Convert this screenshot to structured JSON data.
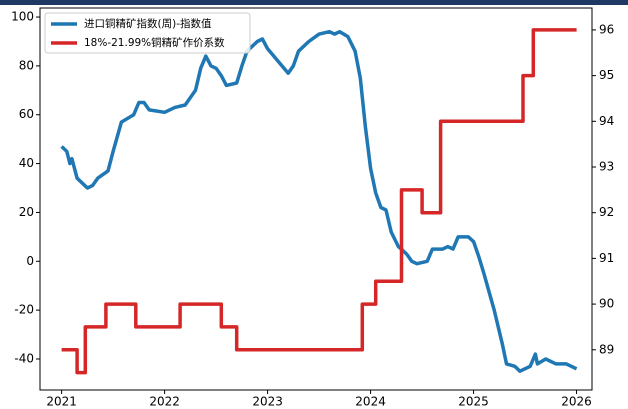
{
  "chart_data": {
    "type": "line",
    "xlim": [
      2020.79,
      2026.15
    ],
    "xticks": [
      2021,
      2022,
      2023,
      2024,
      2025,
      2026
    ],
    "ylim": [
      -52.7,
      103.7
    ],
    "yticks": [
      -40,
      -20,
      0,
      20,
      40,
      60,
      80,
      100
    ],
    "y2lim": [
      88.12,
      96.48
    ],
    "y2ticks": [
      89,
      90,
      91,
      92,
      93,
      94,
      95,
      96
    ],
    "legend": "upper left",
    "series": [
      {
        "name": "进口铜精矿指数(周)-指数值",
        "color": "#1f77b4",
        "x": [
          2021.0,
          2021.05,
          2021.08,
          2021.1,
          2021.15,
          2021.25,
          2021.3,
          2021.35,
          2021.45,
          2021.5,
          2021.58,
          2021.7,
          2021.75,
          2021.8,
          2021.85,
          2022.0,
          2022.1,
          2022.2,
          2022.3,
          2022.35,
          2022.4,
          2022.45,
          2022.5,
          2022.55,
          2022.6,
          2022.7,
          2022.75,
          2022.8,
          2022.9,
          2022.95,
          2023.0,
          2023.1,
          2023.2,
          2023.25,
          2023.3,
          2023.4,
          2023.5,
          2023.6,
          2023.65,
          2023.7,
          2023.78,
          2023.85,
          2023.9,
          2023.95,
          2024.0,
          2024.05,
          2024.1,
          2024.15,
          2024.2,
          2024.27,
          2024.35,
          2024.4,
          2024.45,
          2024.55,
          2024.6,
          2024.7,
          2024.75,
          2024.8,
          2024.85,
          2024.95,
          2025.0,
          2025.05,
          2025.1,
          2025.2,
          2025.28,
          2025.32,
          2025.4,
          2025.45,
          2025.55,
          2025.6,
          2025.62,
          2025.7,
          2025.8,
          2025.9,
          2026.0
        ],
        "values": [
          47,
          45,
          40,
          42,
          34,
          30,
          31,
          34,
          37,
          45,
          57,
          60,
          65,
          65,
          62,
          61,
          63,
          64,
          70,
          79,
          84,
          80,
          79,
          76,
          72,
          73,
          80,
          86,
          90,
          91,
          87,
          82,
          77,
          80,
          86,
          90,
          93,
          94,
          93,
          94,
          92,
          86,
          75,
          55,
          38,
          28,
          22,
          21,
          12,
          6,
          3,
          0,
          -1,
          0,
          5,
          5,
          6,
          5,
          10,
          10,
          8,
          2,
          -5,
          -20,
          -34,
          -42,
          -43,
          -45,
          -43,
          -38,
          -42,
          -40,
          -42,
          -42,
          -44
        ]
      },
      {
        "name": "18%-21.99%铜精矿作价系数",
        "color": "#d62728",
        "axis": "y2",
        "x": [
          2021.0,
          2021.15,
          2021.15,
          2021.23,
          2021.23,
          2021.43,
          2021.43,
          2021.72,
          2021.72,
          2022.15,
          2022.15,
          2022.55,
          2022.55,
          2022.7,
          2022.7,
          2023.92,
          2023.92,
          2024.05,
          2024.05,
          2024.3,
          2024.3,
          2024.5,
          2024.5,
          2024.68,
          2024.68,
          2025.48,
          2025.48,
          2025.58,
          2025.58,
          2026.0
        ],
        "values": [
          89,
          89,
          88.5,
          88.5,
          89.5,
          89.5,
          90,
          90,
          89.5,
          89.5,
          90,
          90,
          89.5,
          89.5,
          89,
          89,
          90,
          90,
          90.5,
          90.5,
          92.5,
          92.5,
          92,
          92,
          94,
          94,
          95,
          95,
          96,
          96
        ]
      }
    ]
  }
}
